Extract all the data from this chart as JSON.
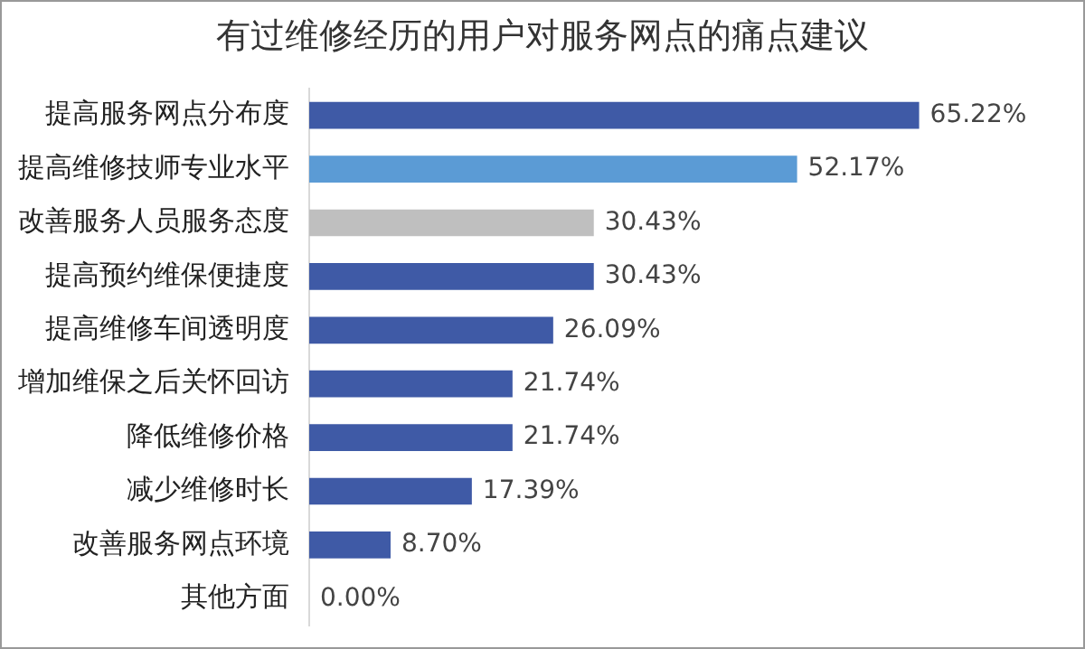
{
  "chart_data": {
    "type": "bar",
    "orientation": "horizontal",
    "title": "有过维修经历的用户对服务网点的痛点建议",
    "categories": [
      "提高服务网点分布度",
      "提高维修技师专业水平",
      "改善服务人员服务态度",
      "提高预约维保便捷度",
      "提高维修车间透明度",
      "增加维保之后关怀回访",
      "降低维修价格",
      "减少维修时长",
      "改善服务网点环境",
      "其他方面"
    ],
    "values": [
      65.22,
      52.17,
      30.43,
      30.43,
      26.09,
      21.74,
      21.74,
      17.39,
      8.7,
      0.0
    ],
    "colors": [
      "#3f5aa6",
      "#5b9bd5",
      "#bfbfbf",
      "#3f5aa6",
      "#3f5aa6",
      "#3f5aa6",
      "#3f5aa6",
      "#3f5aa6",
      "#3f5aa6",
      "#3f5aa6"
    ],
    "value_labels": [
      "65.22%",
      "52.17%",
      "30.43%",
      "30.43%",
      "26.09%",
      "21.74%",
      "21.74%",
      "17.39%",
      "8.70%",
      "0.00%"
    ],
    "legend": false
  }
}
